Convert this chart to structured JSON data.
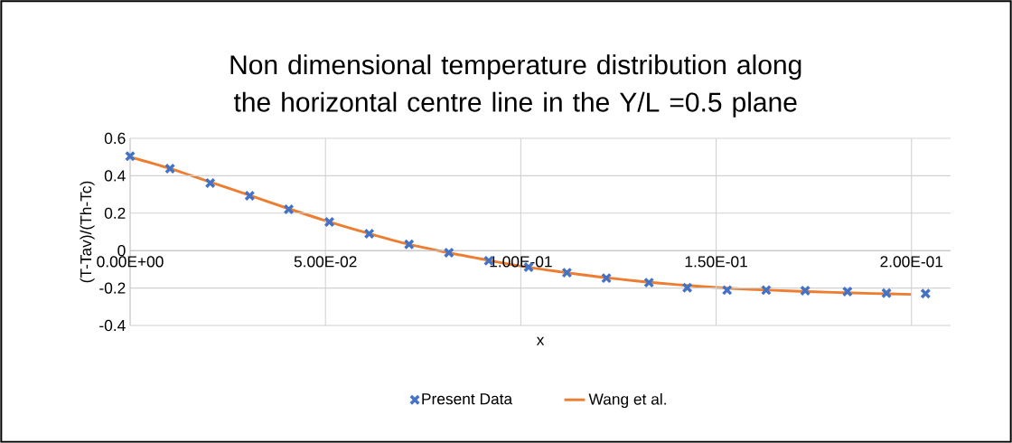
{
  "chart_data": {
    "type": "scatter",
    "title": "Non dimensional temperature distribution along the horizontal centre line in the Y/L =0.5 plane",
    "xlabel": "x",
    "ylabel": "(T-Tav)/(Th-Tc)",
    "xlim": [
      0,
      0.21
    ],
    "ylim": [
      -0.4,
      0.6
    ],
    "xticks": [
      {
        "value": 0,
        "label": "0.00E+00"
      },
      {
        "value": 0.05,
        "label": "5.00E-02"
      },
      {
        "value": 0.1,
        "label": "1.00E-01"
      },
      {
        "value": 0.15,
        "label": "1.50E-01"
      },
      {
        "value": 0.2,
        "label": "2.00E-01"
      }
    ],
    "yticks": [
      -0.4,
      -0.2,
      0,
      0.2,
      0.4,
      0.6
    ],
    "grid": true,
    "legend": "bottom",
    "series": [
      {
        "name": "Present Data",
        "marker": "cross",
        "color": "#4472c4",
        "x": [
          0,
          0.0102,
          0.0205,
          0.0306,
          0.0406,
          0.051,
          0.0612,
          0.0714,
          0.0816,
          0.0918,
          0.102,
          0.1118,
          0.1219,
          0.1328,
          0.1426,
          0.1528,
          0.1628,
          0.1728,
          0.1836,
          0.1936,
          0.2036
        ],
        "values": [
          0.505,
          0.438,
          0.361,
          0.293,
          0.221,
          0.153,
          0.09,
          0.034,
          -0.011,
          -0.054,
          -0.088,
          -0.118,
          -0.147,
          -0.171,
          -0.198,
          -0.211,
          -0.211,
          -0.214,
          -0.219,
          -0.227,
          -0.23
        ]
      },
      {
        "name": "Wang et al.",
        "type": "line",
        "marker": "none",
        "color": "#ed7d31",
        "x": [
          0,
          0.01,
          0.02,
          0.03,
          0.04,
          0.05,
          0.06,
          0.07,
          0.08,
          0.09,
          0.1,
          0.11,
          0.12,
          0.13,
          0.14,
          0.15,
          0.16,
          0.17,
          0.18,
          0.19,
          0.2
        ],
        "values": [
          0.5,
          0.44,
          0.37,
          0.3,
          0.228,
          0.16,
          0.098,
          0.04,
          -0.005,
          -0.045,
          -0.083,
          -0.113,
          -0.14,
          -0.163,
          -0.182,
          -0.197,
          -0.208,
          -0.216,
          -0.223,
          -0.229,
          -0.234
        ]
      }
    ]
  }
}
